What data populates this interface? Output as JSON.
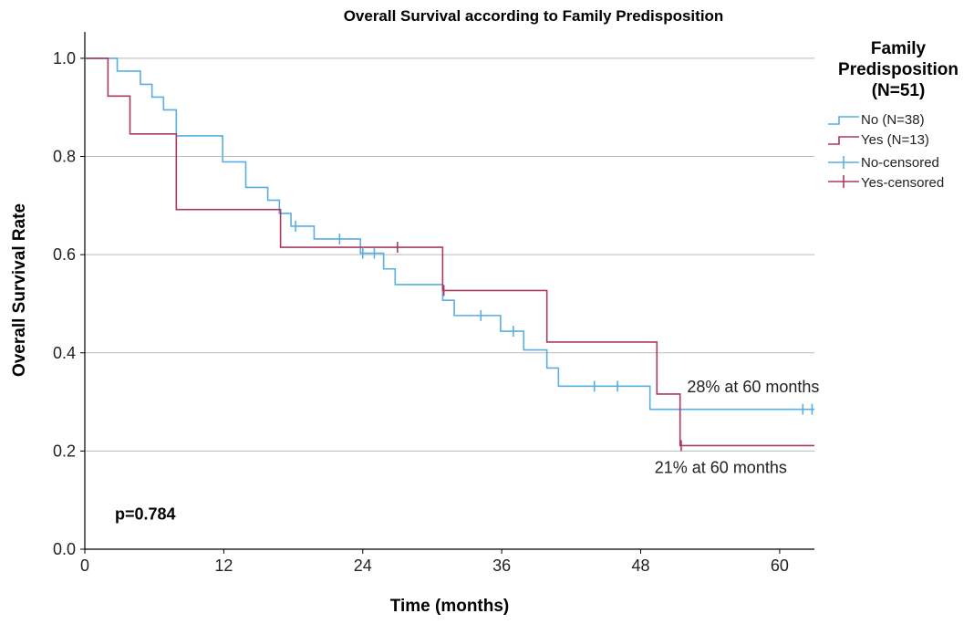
{
  "chart_data": {
    "type": "line",
    "subtype": "kaplan-meier step",
    "title": "Overall Survival according to Family Predisposition",
    "xlabel": "Time (months)",
    "ylabel": "Overall Survival Rate",
    "xlim": [
      0,
      63
    ],
    "ylim": [
      0,
      1.05
    ],
    "x_ticks": [
      0,
      12,
      24,
      36,
      48,
      60
    ],
    "x_tick_labels": [
      "0",
      "12",
      "24",
      "36",
      "48",
      "60"
    ],
    "y_ticks": [
      0.0,
      0.2,
      0.4,
      0.6,
      0.8,
      1.0
    ],
    "y_tick_labels": [
      "0.0",
      "0.2",
      "0.4",
      "0.6",
      "0.8",
      "1.0"
    ],
    "grid": "horizontal",
    "legend": {
      "placement": "right",
      "title_lines": [
        "Family",
        "Predisposition",
        "(N=51)"
      ],
      "entries": [
        "No (N=38)",
        "Yes (N=13)",
        "No-censored",
        "Yes-censored"
      ]
    },
    "series": [
      {
        "name": "No (N=38)",
        "color": "#5aaee0",
        "steps": [
          [
            0,
            1.0
          ],
          [
            2.8,
            0.974
          ],
          [
            4.8,
            0.947
          ],
          [
            5.8,
            0.921
          ],
          [
            6.8,
            0.895
          ],
          [
            7.9,
            0.842
          ],
          [
            11.9,
            0.789
          ],
          [
            13.9,
            0.737
          ],
          [
            15.8,
            0.711
          ],
          [
            16.8,
            0.684
          ],
          [
            17.8,
            0.658
          ],
          [
            19.8,
            0.632
          ],
          [
            23.8,
            0.603
          ],
          [
            25.8,
            0.571
          ],
          [
            26.8,
            0.539
          ],
          [
            30.9,
            0.507
          ],
          [
            31.9,
            0.476
          ],
          [
            35.9,
            0.444
          ],
          [
            37.9,
            0.406
          ],
          [
            39.9,
            0.369
          ],
          [
            40.9,
            0.332
          ],
          [
            48.8,
            0.285
          ],
          [
            63,
            0.285
          ]
        ],
        "censored": [
          [
            18.2,
            0.658
          ],
          [
            22.0,
            0.632
          ],
          [
            24.0,
            0.603
          ],
          [
            25.0,
            0.603
          ],
          [
            34.2,
            0.476
          ],
          [
            37.0,
            0.444
          ],
          [
            44.0,
            0.332
          ],
          [
            46.0,
            0.332
          ],
          [
            62.0,
            0.285
          ],
          [
            62.8,
            0.285
          ]
        ]
      },
      {
        "name": "Yes (N=13)",
        "color": "#a93a60",
        "steps": [
          [
            0,
            1.0
          ],
          [
            2.0,
            0.923
          ],
          [
            3.9,
            0.846
          ],
          [
            7.9,
            0.692
          ],
          [
            16.9,
            0.615
          ],
          [
            30.9,
            0.527
          ],
          [
            39.9,
            0.422
          ],
          [
            49.4,
            0.316
          ],
          [
            51.4,
            0.211
          ],
          [
            63,
            0.211
          ]
        ],
        "censored": [
          [
            27.0,
            0.615
          ],
          [
            31.0,
            0.527
          ],
          [
            51.5,
            0.211
          ]
        ]
      }
    ],
    "annotations": [
      {
        "text": "28% at 60 months",
        "x": 52.0,
        "y": 0.32
      },
      {
        "text": "21% at 60 months",
        "x": 49.2,
        "y": 0.155
      },
      {
        "text": "p=0.784",
        "x": 2.6,
        "y": 0.06
      }
    ]
  }
}
